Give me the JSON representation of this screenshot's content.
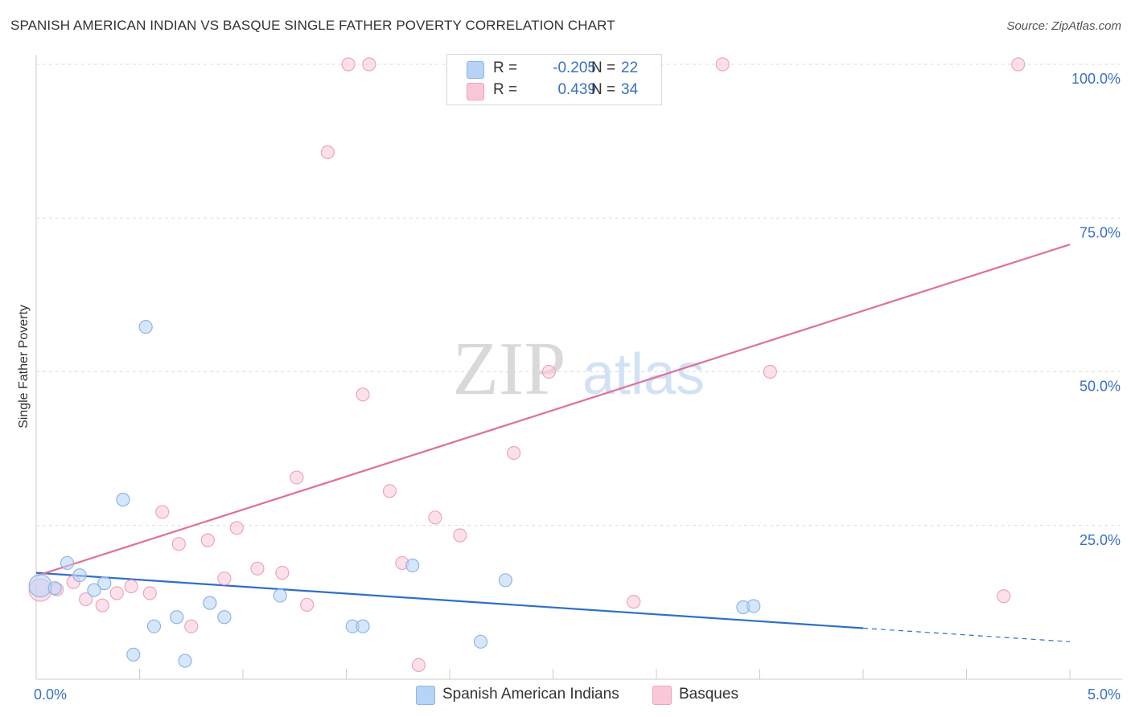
{
  "title": "SPANISH AMERICAN INDIAN VS BASQUE SINGLE FATHER POVERTY CORRELATION CHART",
  "source": "Source: ZipAtlas.com",
  "colors": {
    "blue_fill": "#b7d3f5",
    "blue_stroke": "#8db5e8",
    "blue_line": "#2f6fc9",
    "pink_fill": "#f9c8d8",
    "pink_stroke": "#f0a3bc",
    "pink_line": "#e0709a",
    "tick_label": "#3b6fc4",
    "grid": "#dcdcdc",
    "axis": "#cccccc"
  },
  "legend_top": {
    "rows": [
      {
        "r_label": "R =",
        "r_value": "-0.205",
        "n_label": "N =",
        "n_value": "22",
        "swatch": "blue"
      },
      {
        "r_label": "R =",
        "r_value": "0.439",
        "n_label": "N =",
        "n_value": "34",
        "swatch": "pink"
      }
    ]
  },
  "watermark": {
    "zip": "ZIP",
    "atlas": "atlas"
  },
  "chart_data": {
    "type": "scatter",
    "title": "SPANISH AMERICAN INDIAN VS BASQUE SINGLE FATHER POVERTY CORRELATION CHART",
    "xlabel": "",
    "ylabel": "Single Father Poverty",
    "xlim": [
      0,
      5
    ],
    "ylim": [
      0,
      100
    ],
    "x_tick_labels": [
      {
        "value": 0,
        "label": "0.0%"
      },
      {
        "value": 5,
        "label": "5.0%"
      }
    ],
    "x_minor_ticks": [
      0.5,
      1.0,
      1.5,
      2.0,
      2.5,
      3.0,
      3.5,
      4.0,
      4.5,
      5.0
    ],
    "y_ticks": [
      {
        "value": 25,
        "label": "25.0%"
      },
      {
        "value": 50,
        "label": "50.0%"
      },
      {
        "value": 75,
        "label": "75.0%"
      },
      {
        "value": 100,
        "label": "100.0%"
      }
    ],
    "grid": true,
    "legend": "bottom-center",
    "series": [
      {
        "name": "Spanish American Indians",
        "color": "blue",
        "r": -0.205,
        "n": 22,
        "trend": {
          "x0": 0,
          "y0": 17.3,
          "x1": 4.0,
          "y1": 8.3,
          "dashed_to_x": 5.0,
          "dashed_to_y": 6.1
        },
        "points": [
          {
            "x": 0.02,
            "y": 15.2,
            "big": true
          },
          {
            "x": 0.09,
            "y": 14.8
          },
          {
            "x": 0.15,
            "y": 18.9
          },
          {
            "x": 0.21,
            "y": 16.9
          },
          {
            "x": 0.28,
            "y": 14.5
          },
          {
            "x": 0.33,
            "y": 15.6
          },
          {
            "x": 0.42,
            "y": 29.2
          },
          {
            "x": 0.47,
            "y": 4.0
          },
          {
            "x": 0.53,
            "y": 57.3
          },
          {
            "x": 0.57,
            "y": 8.6
          },
          {
            "x": 0.68,
            "y": 10.1
          },
          {
            "x": 0.72,
            "y": 3.0
          },
          {
            "x": 0.84,
            "y": 12.4
          },
          {
            "x": 0.91,
            "y": 10.1
          },
          {
            "x": 1.18,
            "y": 13.6
          },
          {
            "x": 1.53,
            "y": 8.6
          },
          {
            "x": 1.58,
            "y": 8.6
          },
          {
            "x": 1.82,
            "y": 18.5
          },
          {
            "x": 2.15,
            "y": 6.1
          },
          {
            "x": 2.27,
            "y": 16.1
          },
          {
            "x": 3.42,
            "y": 11.7
          },
          {
            "x": 3.47,
            "y": 11.9
          }
        ]
      },
      {
        "name": "Basques",
        "color": "pink",
        "r": 0.439,
        "n": 34,
        "trend": {
          "x0": 0,
          "y0": 16.8,
          "x1": 5.0,
          "y1": 70.7
        },
        "points": [
          {
            "x": 0.02,
            "y": 14.5,
            "big": true
          },
          {
            "x": 0.1,
            "y": 14.6
          },
          {
            "x": 0.18,
            "y": 15.8
          },
          {
            "x": 0.24,
            "y": 13.0
          },
          {
            "x": 0.32,
            "y": 12.0
          },
          {
            "x": 0.39,
            "y": 14.0
          },
          {
            "x": 0.46,
            "y": 15.1
          },
          {
            "x": 0.55,
            "y": 14.0
          },
          {
            "x": 0.61,
            "y": 27.2
          },
          {
            "x": 0.69,
            "y": 22.0
          },
          {
            "x": 0.75,
            "y": 8.6
          },
          {
            "x": 0.83,
            "y": 22.6
          },
          {
            "x": 0.91,
            "y": 16.4
          },
          {
            "x": 0.97,
            "y": 24.6
          },
          {
            "x": 1.07,
            "y": 18.0
          },
          {
            "x": 1.19,
            "y": 17.3
          },
          {
            "x": 1.26,
            "y": 32.8
          },
          {
            "x": 1.31,
            "y": 12.1
          },
          {
            "x": 1.41,
            "y": 85.7
          },
          {
            "x": 1.51,
            "y": 100.0
          },
          {
            "x": 1.58,
            "y": 46.3
          },
          {
            "x": 1.61,
            "y": 100.0
          },
          {
            "x": 1.71,
            "y": 30.6
          },
          {
            "x": 1.77,
            "y": 18.9
          },
          {
            "x": 1.85,
            "y": 2.3
          },
          {
            "x": 1.93,
            "y": 26.3
          },
          {
            "x": 2.05,
            "y": 23.4
          },
          {
            "x": 2.31,
            "y": 36.8
          },
          {
            "x": 2.48,
            "y": 50.0
          },
          {
            "x": 2.89,
            "y": 12.6
          },
          {
            "x": 3.32,
            "y": 100.0
          },
          {
            "x": 3.55,
            "y": 50.0
          },
          {
            "x": 4.68,
            "y": 13.5
          },
          {
            "x": 4.75,
            "y": 100.0
          }
        ]
      }
    ]
  },
  "legend_bottom": {
    "items": [
      {
        "label": "Spanish American Indians",
        "swatch": "blue"
      },
      {
        "label": "Basques",
        "swatch": "pink"
      }
    ]
  }
}
